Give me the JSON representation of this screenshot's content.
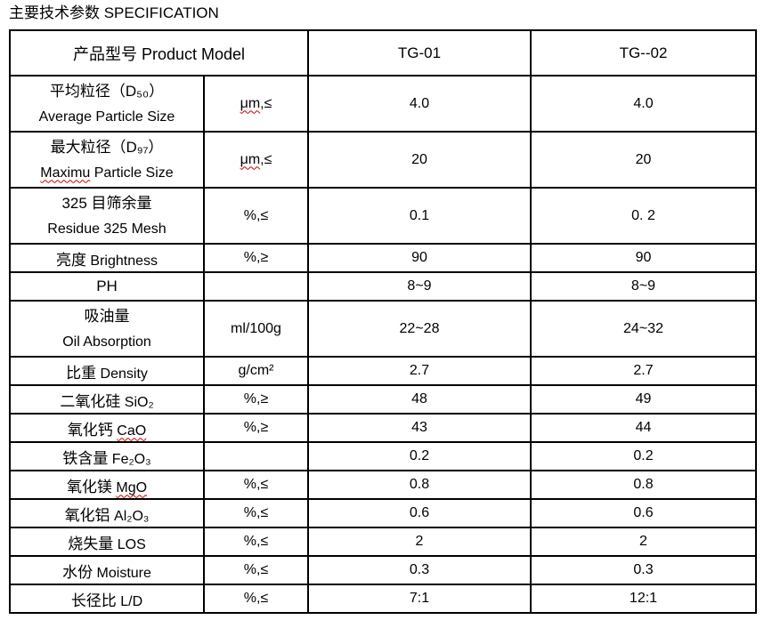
{
  "colors": {
    "text": "#000000",
    "border": "#000000",
    "squiggle": "#cc0000",
    "background": "#ffffff"
  },
  "page_title": "主要技术参数 SPECIFICATION",
  "table": {
    "header": {
      "product_model": "产品型号 Product Model",
      "tg01": "TG-01",
      "tg02": "TG--02"
    },
    "rows": [
      {
        "zh": "平均粒径（D₅₀）",
        "two_line": true,
        "en_parts": [
          {
            "t": "Average Particle Size",
            "sq": false
          }
        ],
        "unit_parts": [
          {
            "t": "μm",
            "sq": true
          },
          {
            "t": ",≤",
            "sq": false
          }
        ],
        "tg01": "4.0",
        "tg02": "4.0"
      },
      {
        "zh": "最大粒径（D₉₇）",
        "two_line": true,
        "en_parts": [
          {
            "t": "Maximu",
            "sq": true
          },
          {
            "t": " Particle Size",
            "sq": false
          }
        ],
        "unit_parts": [
          {
            "t": "μm",
            "sq": true
          },
          {
            "t": ",≤",
            "sq": false
          }
        ],
        "tg01": "20",
        "tg02": "20"
      },
      {
        "zh": "325 目筛余量",
        "two_line": true,
        "en_parts": [
          {
            "t": "Residue 325 Mesh",
            "sq": false
          }
        ],
        "unit_parts": [
          {
            "t": "%,≤",
            "sq": false
          }
        ],
        "tg01": "0.1",
        "tg02": "0. 2"
      },
      {
        "zh": "亮度",
        "two_line": false,
        "en_parts": [
          {
            "t": "Brightness",
            "sq": false
          }
        ],
        "unit_parts": [
          {
            "t": "%,≥",
            "sq": false
          }
        ],
        "tg01": "90",
        "tg02": "90"
      },
      {
        "zh": "PH",
        "two_line": false,
        "en_parts": [],
        "unit_parts": [],
        "tg01": "8~9",
        "tg02": "8~9"
      },
      {
        "zh": "吸油量",
        "two_line": true,
        "en_parts": [
          {
            "t": "Oil Absorption",
            "sq": false
          }
        ],
        "unit_parts": [
          {
            "t": "ml/100g",
            "sq": false
          }
        ],
        "tg01": "22~28",
        "tg02": "24~32"
      },
      {
        "zh": "比重",
        "two_line": false,
        "en_parts": [
          {
            "t": "Density",
            "sq": false
          }
        ],
        "unit_parts": [
          {
            "t": "g/cm²",
            "sq": false
          }
        ],
        "tg01": "2.7",
        "tg02": "2.7"
      },
      {
        "zh": "二氧化硅",
        "two_line": false,
        "en_parts": [
          {
            "t": "SiO₂",
            "sq": false
          }
        ],
        "unit_parts": [
          {
            "t": "%,≥",
            "sq": false
          }
        ],
        "tg01": "48",
        "tg02": "49"
      },
      {
        "zh": "氧化钙",
        "two_line": false,
        "en_parts": [
          {
            "t": "CaO",
            "sq": true
          }
        ],
        "unit_parts": [
          {
            "t": "%,≥",
            "sq": false
          }
        ],
        "tg01": "43",
        "tg02": "44"
      },
      {
        "zh": "铁含量",
        "two_line": false,
        "en_parts": [
          {
            "t": "Fe₂O₃",
            "sq": false
          }
        ],
        "unit_parts": [],
        "tg01": "0.2",
        "tg02": "0.2"
      },
      {
        "zh": "氧化镁",
        "two_line": false,
        "en_parts": [
          {
            "t": "MgO",
            "sq": true
          }
        ],
        "unit_parts": [
          {
            "t": "%,≤",
            "sq": false
          }
        ],
        "tg01": "0.8",
        "tg02": "0.8"
      },
      {
        "zh": "氧化铝",
        "two_line": false,
        "en_parts": [
          {
            "t": "Al₂O₃",
            "sq": false
          }
        ],
        "unit_parts": [
          {
            "t": "%,≤",
            "sq": false
          }
        ],
        "tg01": "0.6",
        "tg02": "0.6"
      },
      {
        "zh": "烧失量",
        "two_line": false,
        "en_parts": [
          {
            "t": "LOS",
            "sq": false
          }
        ],
        "unit_parts": [
          {
            "t": "%,≤",
            "sq": false
          }
        ],
        "tg01": "2",
        "tg02": "2"
      },
      {
        "zh": "水份",
        "two_line": false,
        "en_parts": [
          {
            "t": "Moisture",
            "sq": false
          }
        ],
        "unit_parts": [
          {
            "t": "%,≤",
            "sq": false
          }
        ],
        "tg01": "0.3",
        "tg02": "0.3"
      },
      {
        "zh": "长径比",
        "two_line": false,
        "en_parts": [
          {
            "t": "L/D",
            "sq": false
          }
        ],
        "unit_parts": [
          {
            "t": "%,≤",
            "sq": false
          }
        ],
        "tg01": "7:1",
        "tg02": "12:1"
      }
    ]
  }
}
